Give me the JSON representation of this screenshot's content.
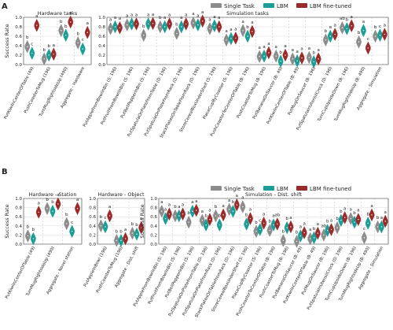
{
  "figure": {
    "panel_a_label": "A",
    "panel_b_label": "B",
    "legend": [
      {
        "label": "Single Task",
        "color": "#8c8c8c"
      },
      {
        "label": "LBM",
        "color": "#1a9e96"
      },
      {
        "label": "LBM fine-tuned",
        "color": "#9b2a2a"
      }
    ]
  },
  "colors": {
    "single": "#8c8c8c",
    "lbm": "#1a9e96",
    "ft": "#9b2a2a"
  },
  "chart_data": [
    {
      "panel": "A",
      "title": "Hardware tasks",
      "type": "scatter",
      "ylabel": "Success Rate",
      "ylim": [
        0,
        1
      ],
      "yticks": [
        "0.0",
        "0.2",
        "0.4",
        "0.6",
        "0.8",
        "1.0"
      ],
      "categories": [
        "PutKiwiInCenterOfTable (49)",
        "PushCoasterToMug (196)",
        "TurnMugRightsideUp (490)",
        "Aggregate - Hardware"
      ],
      "series": [
        {
          "name": "Single Task",
          "values": [
            0.38,
            0.12,
            0.72,
            0.46
          ]
        },
        {
          "name": "LBM",
          "values": [
            0.24,
            0.2,
            0.62,
            0.33
          ]
        },
        {
          "name": "LBM fine-tuned",
          "values": [
            0.83,
            0.22,
            0.9,
            0.68
          ]
        }
      ],
      "letters": [
        [
          "b",
          "c",
          "a"
        ],
        [
          "b",
          "b",
          "a"
        ],
        [
          "b",
          "b",
          "a"
        ],
        [
          "b",
          "c",
          "a"
        ]
      ]
    },
    {
      "panel": "A",
      "title": "Simulation tasks",
      "type": "scatter",
      "ylim": [
        0,
        1
      ],
      "yticks": [
        "0.0",
        "0.2",
        "0.4",
        "0.6",
        "0.8",
        "1.0"
      ],
      "categories": [
        "PutAppleFromBowlInBin (S: 196)",
        "PutFruitFromBowlInBin (S: 196)",
        "PutBellPepperInBin (S: 196)",
        "PutSpatulaOnPlateFromTable (D: 196)",
        "PutSpatulaOnPlateFromRack (D: 196)",
        "StackPlatesOnTableFromRack (D: 196)",
        "StoreCerealBoxUnderShelf (S: 196)",
        "PlaceCupByCoaster (S: 196)",
        "PushCoasterToCenterOfTable (B: 196)",
        "PushCoasterToMug (B: 196)",
        "PutBananaOnSaucer (B: 49)",
        "PutKiwiInCenterOfTable (B: 49)",
        "PutMugOnSaucer (B: 196)",
        "PutSpatulaInUtensilCrock (D: 196)",
        "TurnCupUpsideDown (B: 196)",
        "TurnMugRightsideUp (B: 490)",
        "Aggregate - Simulation"
      ],
      "series": [
        {
          "name": "Single Task",
          "values": [
            0.76,
            0.84,
            0.62,
            0.8,
            0.66,
            0.88,
            0.76,
            0.52,
            0.72,
            0.17,
            0.18,
            0.12,
            0.15,
            0.52,
            0.78,
            0.48,
            0.6
          ]
        },
        {
          "name": "LBM",
          "values": [
            0.8,
            0.86,
            0.86,
            0.8,
            0.8,
            0.84,
            0.82,
            0.55,
            0.6,
            0.18,
            0.07,
            0.08,
            0.06,
            0.6,
            0.76,
            0.72,
            0.62
          ]
        },
        {
          "name": "LBM fine-tuned",
          "values": [
            0.78,
            0.86,
            0.87,
            0.86,
            0.86,
            0.92,
            0.8,
            0.56,
            0.7,
            0.25,
            0.2,
            0.14,
            0.12,
            0.64,
            0.82,
            0.35,
            0.64
          ]
        }
      ],
      "letters": [
        [
          "a",
          "a",
          "a"
        ],
        [
          "a",
          "a",
          "a"
        ],
        [
          "b",
          "a",
          "a"
        ],
        [
          "b",
          "a",
          "a"
        ],
        [
          "b",
          "a",
          "a"
        ],
        [
          "a",
          "a",
          "a"
        ],
        [
          "a",
          "a",
          "a"
        ],
        [
          "a",
          "a",
          "a"
        ],
        [
          "a",
          "b",
          "a"
        ],
        [
          "a",
          "a",
          "a"
        ],
        [
          "a",
          "b",
          "a"
        ],
        [
          "a",
          "a",
          "a"
        ],
        [
          "a",
          "b",
          "a"
        ],
        [
          "b",
          "a",
          "a"
        ],
        [
          "ab",
          "b",
          "a"
        ],
        [
          "b",
          "a",
          "c"
        ],
        [
          "b",
          "c",
          "a"
        ]
      ]
    },
    {
      "panel": "B",
      "title": "Hardware - Station",
      "type": "scatter",
      "ylabel": "Success Rate",
      "ylim": [
        0,
        1
      ],
      "yticks": [
        "0.0",
        "0.2",
        "0.4",
        "0.6",
        "0.8",
        "1.0"
      ],
      "categories": [
        "PutKiwiInCenterOfTable (49)",
        "TurnMugRightsideUp (490)",
        "Aggregate - Novel station"
      ],
      "series": [
        {
          "name": "Single Task",
          "values": [
            0.18,
            0.78,
            0.45
          ]
        },
        {
          "name": "LBM",
          "values": [
            0.12,
            0.72,
            0.28
          ]
        },
        {
          "name": "LBM fine-tuned",
          "values": [
            0.7,
            0.88,
            0.78
          ]
        }
      ],
      "letters": [
        [
          "b",
          "b",
          "a"
        ],
        [
          "b",
          "b",
          "a"
        ],
        [
          "b",
          "c",
          "a"
        ]
      ]
    },
    {
      "panel": "B",
      "title": "Hardware - Object",
      "type": "scatter",
      "ylim": [
        0,
        1
      ],
      "yticks": [
        "0.0",
        "0.2",
        "0.4",
        "0.6",
        "0.8",
        "1.0"
      ],
      "categories": [
        "PutAppleInBowl (196)",
        "PushCoasterToMug (196)",
        "Aggregate - Dist. shift"
      ],
      "series": [
        {
          "name": "Single Task",
          "values": [
            0.4,
            0.08,
            0.24
          ]
        },
        {
          "name": "LBM",
          "values": [
            0.38,
            0.08,
            0.22
          ]
        },
        {
          "name": "LBM fine-tuned",
          "values": [
            0.62,
            0.12,
            0.36
          ]
        }
      ],
      "letters": [
        [
          "b",
          "c",
          "a"
        ],
        [
          "b",
          "b",
          "a"
        ],
        [
          "b",
          "b",
          "a"
        ]
      ]
    },
    {
      "panel": "B",
      "title": "Simulation - Dist. shift",
      "type": "scatter",
      "ylabel": "Success Rate",
      "ylim": [
        0,
        1
      ],
      "yticks": [
        "0.0",
        "0.2",
        "0.4",
        "0.6",
        "0.8",
        "1.0"
      ],
      "categories": [
        "PutAppleFromBowlInBin (S: 196)",
        "PutFruitFromBowlInBin (S: 196)",
        "PutBellPepperInBin (S: 196)",
        "PutSpatulaOnPlateFromTable (D: 196)",
        "PutSpatulaOnPlateFromRack (D: 196)",
        "StackPlatesOnTableFromRack (D: 196)",
        "StoreCerealBoxUnderShelf (S: 196)",
        "PlaceCupByCoaster (S: 196)",
        "PushCoasterToCenterOfTable (B: 196)",
        "PushCoasterToMug (B: 196)",
        "PutBananaOnSaucer (B: 49)",
        "PutKiwiInCenterOfTable (B: 49)",
        "PutMugOnSaucer (B: 196)",
        "PutSpatulaInUtensilCrock (D: 196)",
        "TurnCupUpsideDown (B: 196)",
        "TurnMugRightsideUp (B: 490)",
        "Aggregate - Simulation"
      ],
      "series": [
        {
          "name": "Single Task",
          "values": [
            0.72,
            0.62,
            0.48,
            0.52,
            0.62,
            0.76,
            0.82,
            0.28,
            0.3,
            0.08,
            0.06,
            0.12,
            0.2,
            0.36,
            0.56,
            0.14,
            0.38
          ]
        },
        {
          "name": "LBM",
          "values": [
            0.56,
            0.62,
            0.72,
            0.42,
            0.42,
            0.72,
            0.44,
            0.32,
            0.42,
            0.36,
            0.18,
            0.14,
            0.3,
            0.52,
            0.48,
            0.46,
            0.38
          ]
        },
        {
          "name": "LBM fine-tuned",
          "values": [
            0.66,
            0.66,
            0.74,
            0.54,
            0.64,
            0.86,
            0.56,
            0.46,
            0.44,
            0.38,
            0.25,
            0.24,
            0.32,
            0.58,
            0.54,
            0.64,
            0.5
          ]
        }
      ],
      "letters": [
        [
          "a",
          "a",
          "a"
        ],
        [
          "b",
          "a",
          "a"
        ],
        [
          "b",
          "a",
          "a"
        ],
        [
          "a",
          "b",
          "a"
        ],
        [
          "b",
          "b",
          "a"
        ],
        [
          "a",
          "b",
          "a"
        ],
        [
          "a",
          "b",
          "a"
        ],
        [
          "b",
          "c",
          "a"
        ],
        [
          "b",
          "a",
          "ab"
        ],
        [
          "b",
          "b",
          "a"
        ],
        [
          "b",
          "a",
          "a"
        ],
        [
          "a",
          "b",
          "a"
        ],
        [
          "ab",
          "b",
          "a"
        ],
        [
          "b",
          "b",
          "a"
        ],
        [
          "a",
          "b",
          "a"
        ],
        [
          "c",
          "b",
          "a"
        ],
        [
          "b",
          "a",
          "a"
        ]
      ]
    }
  ]
}
